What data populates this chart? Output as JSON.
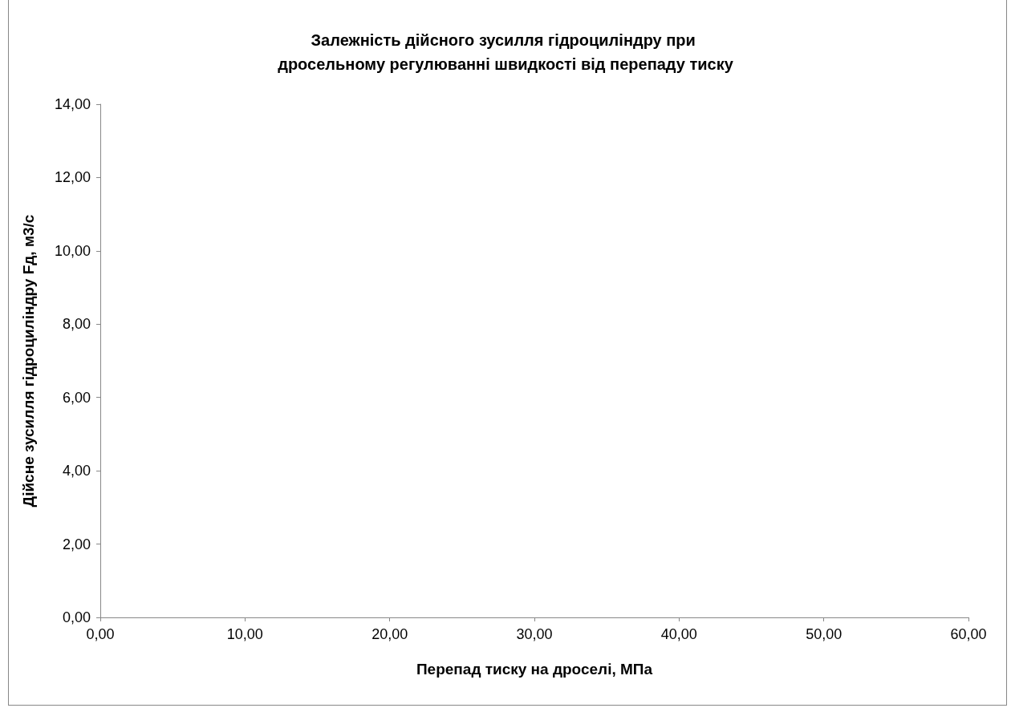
{
  "chart_data": {
    "type": "scatter",
    "title": "Залежність дійсного зусилля гідроциліндру при дросельному регулюванні швидкості від перепаду тиску",
    "xlabel": "Перепад тиску на дроселі, МПа",
    "ylabel": "Дійсне зусилля гідроциліндру Fд, м3/с",
    "xlim": [
      0,
      60
    ],
    "xticks": [
      {
        "value": 0,
        "label": "0,00"
      },
      {
        "value": 10,
        "label": "10,00"
      },
      {
        "value": 20,
        "label": "20,00"
      },
      {
        "value": 30,
        "label": "30,00"
      },
      {
        "value": 40,
        "label": "40,00"
      },
      {
        "value": 50,
        "label": "50,00"
      },
      {
        "value": 60,
        "label": "60,00"
      }
    ],
    "ylim": [
      0,
      14
    ],
    "yticks": [
      {
        "value": 0,
        "label": "0,00"
      },
      {
        "value": 2,
        "label": "2,00"
      },
      {
        "value": 4,
        "label": "4,00"
      },
      {
        "value": 6,
        "label": "6,00"
      },
      {
        "value": 8,
        "label": "8,00"
      },
      {
        "value": 10,
        "label": "10,00"
      },
      {
        "value": 12,
        "label": "12,00"
      },
      {
        "value": 14,
        "label": "14,00"
      }
    ],
    "grid": false
  }
}
